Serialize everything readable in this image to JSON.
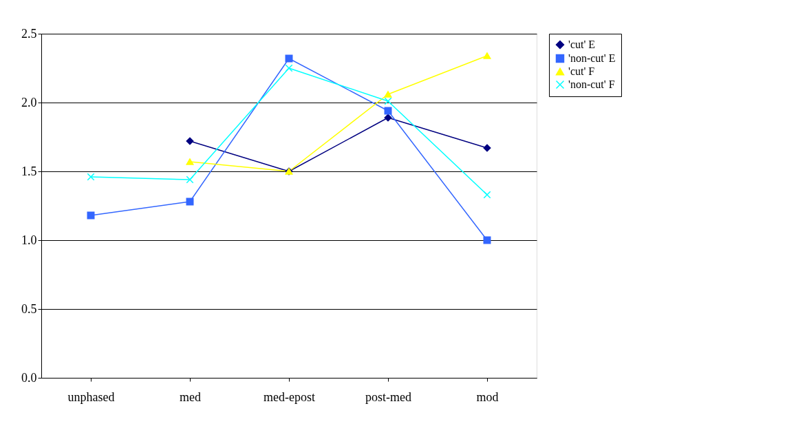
{
  "chart_data": {
    "type": "line",
    "categories": [
      "unphased",
      "med",
      "med-epost",
      "post-med",
      "mod"
    ],
    "series": [
      {
        "name": "'cut' E",
        "color": "#000080",
        "marker": "diamond",
        "values": [
          null,
          1.72,
          1.5,
          1.89,
          1.67
        ]
      },
      {
        "name": "'non-cut' E",
        "color": "#3366ff",
        "marker": "square",
        "values": [
          1.18,
          1.28,
          2.32,
          1.94,
          1.0
        ]
      },
      {
        "name": "'cut' F",
        "color": "#ffff00",
        "marker": "triangle",
        "values": [
          null,
          1.57,
          1.5,
          2.06,
          2.34
        ]
      },
      {
        "name": "'non-cut' F",
        "color": "#00ffff",
        "marker": "cross",
        "values": [
          1.46,
          1.44,
          2.25,
          2.01,
          1.33
        ]
      }
    ],
    "ylim": [
      0,
      2.5
    ],
    "yticks": [
      {
        "value": 0,
        "label": "0.0"
      },
      {
        "value": 0.5,
        "label": "0.5"
      },
      {
        "value": 1,
        "label": "1.0"
      },
      {
        "value": 1.5,
        "label": "1.5"
      },
      {
        "value": 2,
        "label": "2.0"
      },
      {
        "value": 2.5,
        "label": "2.5"
      }
    ],
    "grid": "y",
    "legend": "right",
    "line_style": "solid"
  }
}
